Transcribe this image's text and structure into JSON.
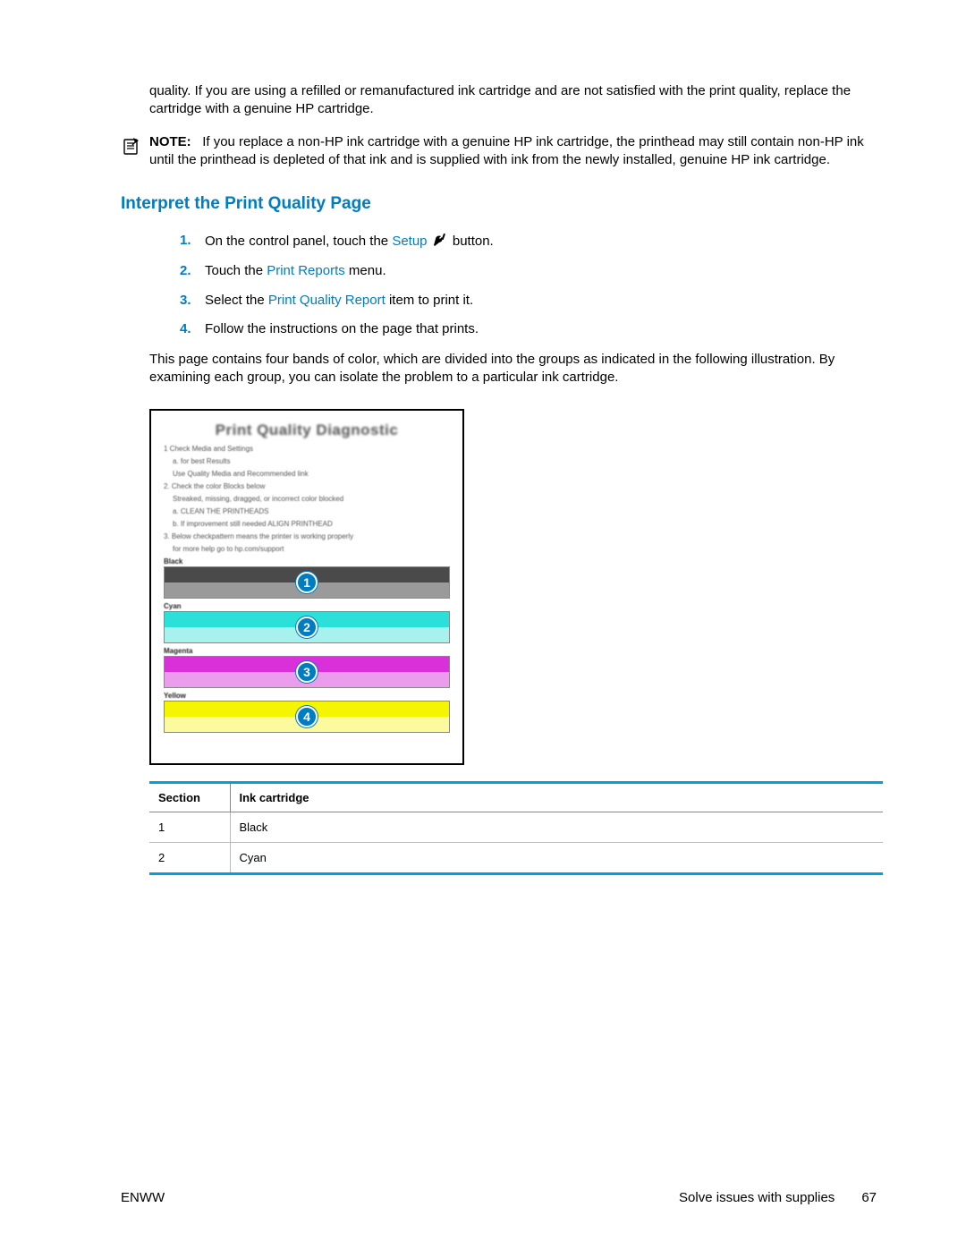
{
  "intro_paragraph": "quality. If you are using a refilled or remanufactured ink cartridge and are not satisfied with the print quality, replace the cartridge with a genuine HP cartridge.",
  "note": {
    "label": "NOTE:",
    "text": "If you replace a non-HP ink cartridge with a genuine HP ink cartridge, the printhead may still contain non-HP ink until the printhead is depleted of that ink and is supplied with ink from the newly installed, genuine HP ink cartridge."
  },
  "heading": "Interpret the Print Quality Page",
  "steps": [
    {
      "num": "1.",
      "pre": "On the control panel, touch the ",
      "link": "Setup",
      "post": " button.",
      "has_icon": true
    },
    {
      "num": "2.",
      "pre": "Touch the ",
      "link": "Print Reports",
      "post": " menu.",
      "has_icon": false
    },
    {
      "num": "3.",
      "pre": "Select the ",
      "link": "Print Quality Report",
      "post": " item to print it.",
      "has_icon": false
    },
    {
      "num": "4.",
      "pre": "Follow the instructions on the page that prints.",
      "link": "",
      "post": "",
      "has_icon": false
    }
  ],
  "after_steps": "This page contains four bands of color, which are divided into the groups as indicated in the following illustration. By examining each group, you can isolate the problem to a particular ink cartridge.",
  "diagram": {
    "title": "Print Quality Diagnostic",
    "instructions": [
      {
        "main": "1 Check Media and Settings",
        "subs": [
          "a.  for best Results",
          "    Use Quality Media and Recommended link"
        ]
      },
      {
        "main": "2. Check the color Blocks below",
        "subs": [
          "Streaked, missing, dragged, or incorrect color blocked",
          "a. CLEAN THE PRINTHEADS",
          "b. If improvement still needed  ALIGN PRINTHEAD"
        ]
      },
      {
        "main": "3. Below checkpattern means the printer is working properly",
        "subs": [
          "for more help go to hp.com/support"
        ]
      }
    ],
    "bands": [
      {
        "label": "Black",
        "callout": "1",
        "top_color": "#4a4a4a",
        "bottom_color": "#9a9a9a"
      },
      {
        "label": "Cyan",
        "callout": "2",
        "top_color": "#2be0d8",
        "bottom_color": "#a8f2ee"
      },
      {
        "label": "Magenta",
        "callout": "3",
        "top_color": "#d930d9",
        "bottom_color": "#ec9cec"
      },
      {
        "label": "Yellow",
        "callout": "4",
        "top_color": "#f5f500",
        "bottom_color": "#fbfb9e"
      }
    ]
  },
  "table": {
    "headers": [
      "Section",
      "Ink cartridge"
    ],
    "rows": [
      [
        "1",
        "Black"
      ],
      [
        "2",
        "Cyan"
      ]
    ]
  },
  "footer": {
    "left": "ENWW",
    "right_text": "Solve issues with supplies",
    "page_num": "67"
  },
  "colors": {
    "accent": "#007cc0",
    "table_border": "#00a0dc"
  }
}
